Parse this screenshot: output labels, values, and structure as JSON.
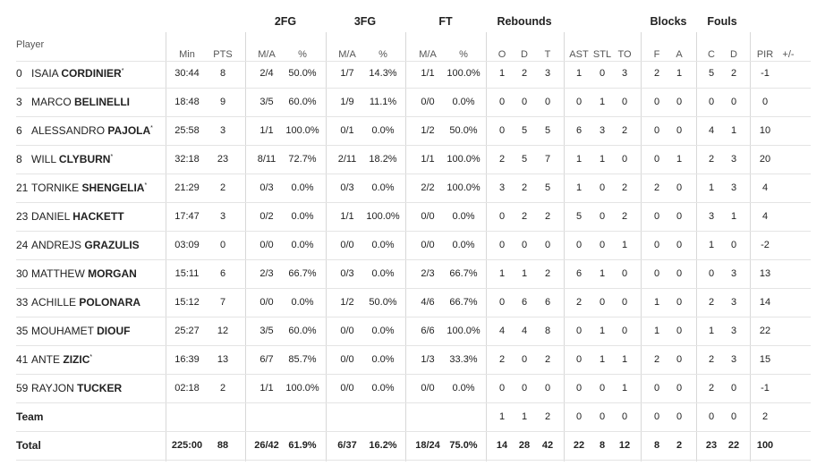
{
  "groups": [
    "2FG",
    "3FG",
    "FT",
    "Rebounds",
    "Blocks",
    "Fouls"
  ],
  "columns": [
    "Player",
    "Min",
    "PTS",
    "M/A",
    "%",
    "M/A",
    "%",
    "M/A",
    "%",
    "O",
    "D",
    "T",
    "AST",
    "STL",
    "TO",
    "F",
    "A",
    "C",
    "D",
    "PIR",
    "+/-"
  ],
  "rows": [
    {
      "number": "0",
      "first": "ISAIA",
      "last": "CORDINIER",
      "mark": "*",
      "cells": [
        "30:44",
        "8",
        "2/4",
        "50.0%",
        "1/7",
        "14.3%",
        "1/1",
        "100.0%",
        "1",
        "2",
        "3",
        "1",
        "0",
        "3",
        "2",
        "1",
        "5",
        "2",
        "-1"
      ]
    },
    {
      "number": "3",
      "first": "MARCO",
      "last": "BELINELLI",
      "cells": [
        "18:48",
        "9",
        "3/5",
        "60.0%",
        "1/9",
        "11.1%",
        "0/0",
        "0.0%",
        "0",
        "0",
        "0",
        "0",
        "1",
        "0",
        "0",
        "0",
        "0",
        "0",
        "0"
      ]
    },
    {
      "number": "6",
      "first": "ALESSANDRO",
      "last": "PAJOLA",
      "mark": "*",
      "cells": [
        "25:58",
        "3",
        "1/1",
        "100.0%",
        "0/1",
        "0.0%",
        "1/2",
        "50.0%",
        "0",
        "5",
        "5",
        "6",
        "3",
        "2",
        "0",
        "0",
        "4",
        "1",
        "10"
      ]
    },
    {
      "number": "8",
      "first": "WILL",
      "last": "CLYBURN",
      "mark": "*",
      "cells": [
        "32:18",
        "23",
        "8/11",
        "72.7%",
        "2/11",
        "18.2%",
        "1/1",
        "100.0%",
        "2",
        "5",
        "7",
        "1",
        "1",
        "0",
        "0",
        "1",
        "2",
        "3",
        "20"
      ]
    },
    {
      "number": "21",
      "first": "TORNIKE",
      "last": "SHENGELIA",
      "mark": "*",
      "cells": [
        "21:29",
        "2",
        "0/3",
        "0.0%",
        "0/3",
        "0.0%",
        "2/2",
        "100.0%",
        "3",
        "2",
        "5",
        "1",
        "0",
        "2",
        "2",
        "0",
        "1",
        "3",
        "4"
      ]
    },
    {
      "number": "23",
      "first": "DANIEL",
      "last": "HACKETT",
      "cells": [
        "17:47",
        "3",
        "0/2",
        "0.0%",
        "1/1",
        "100.0%",
        "0/0",
        "0.0%",
        "0",
        "2",
        "2",
        "5",
        "0",
        "2",
        "0",
        "0",
        "3",
        "1",
        "4"
      ]
    },
    {
      "number": "24",
      "first": "ANDREJS",
      "last": "GRAZULIS",
      "cells": [
        "03:09",
        "0",
        "0/0",
        "0.0%",
        "0/0",
        "0.0%",
        "0/0",
        "0.0%",
        "0",
        "0",
        "0",
        "0",
        "0",
        "1",
        "0",
        "0",
        "1",
        "0",
        "-2"
      ]
    },
    {
      "number": "30",
      "first": "MATTHEW",
      "last": "MORGAN",
      "cells": [
        "15:11",
        "6",
        "2/3",
        "66.7%",
        "0/3",
        "0.0%",
        "2/3",
        "66.7%",
        "1",
        "1",
        "2",
        "6",
        "1",
        "0",
        "0",
        "0",
        "0",
        "3",
        "13"
      ]
    },
    {
      "number": "33",
      "first": "ACHILLE",
      "last": "POLONARA",
      "cells": [
        "15:12",
        "7",
        "0/0",
        "0.0%",
        "1/2",
        "50.0%",
        "4/6",
        "66.7%",
        "0",
        "6",
        "6",
        "2",
        "0",
        "0",
        "1",
        "0",
        "2",
        "3",
        "14"
      ]
    },
    {
      "number": "35",
      "first": "MOUHAMET",
      "last": "DIOUF",
      "cells": [
        "25:27",
        "12",
        "3/5",
        "60.0%",
        "0/0",
        "0.0%",
        "6/6",
        "100.0%",
        "4",
        "4",
        "8",
        "0",
        "1",
        "0",
        "1",
        "0",
        "1",
        "3",
        "22"
      ]
    },
    {
      "number": "41",
      "first": "ANTE",
      "last": "ZIZIC",
      "mark": "*",
      "cells": [
        "16:39",
        "13",
        "6/7",
        "85.7%",
        "0/0",
        "0.0%",
        "1/3",
        "33.3%",
        "2",
        "0",
        "2",
        "0",
        "1",
        "1",
        "2",
        "0",
        "2",
        "3",
        "15"
      ]
    },
    {
      "number": "59",
      "first": "RAYJON",
      "last": "TUCKER",
      "cells": [
        "02:18",
        "2",
        "1/1",
        "100.0%",
        "0/0",
        "0.0%",
        "0/0",
        "0.0%",
        "0",
        "0",
        "0",
        "0",
        "0",
        "1",
        "0",
        "0",
        "2",
        "0",
        "-1"
      ]
    }
  ],
  "team": {
    "label": "Team",
    "cells": [
      null,
      null,
      null,
      null,
      null,
      null,
      null,
      null,
      "1",
      "1",
      "2",
      "0",
      "0",
      "0",
      "0",
      "0",
      "0",
      "0",
      "2"
    ]
  },
  "total": {
    "label": "Total",
    "cells": [
      "225:00",
      "88",
      "26/42",
      "61.9%",
      "6/37",
      "16.2%",
      "18/24",
      "75.0%",
      "14",
      "28",
      "42",
      "22",
      "8",
      "12",
      "8",
      "2",
      "23",
      "22",
      "100"
    ]
  }
}
